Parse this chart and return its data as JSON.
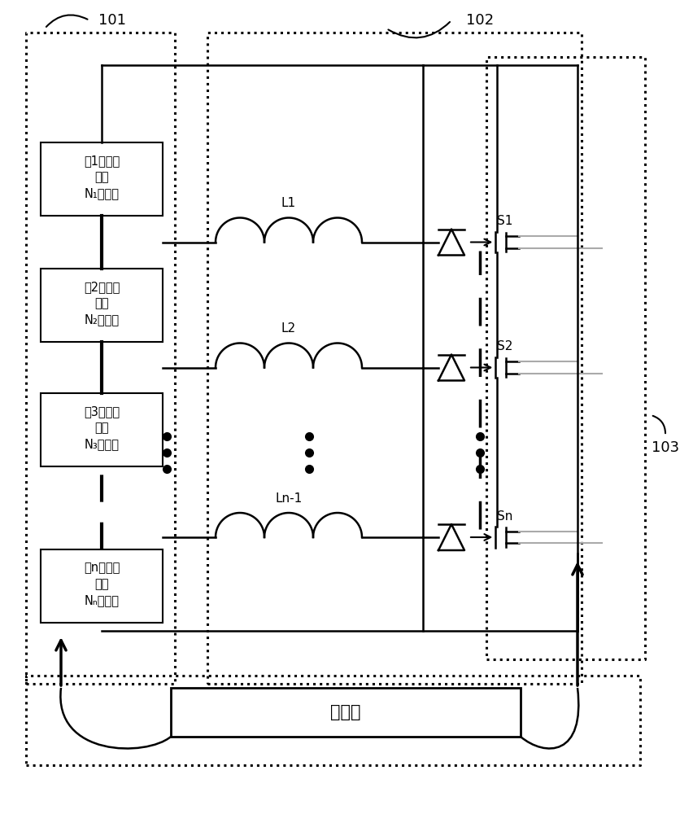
{
  "bg_color": "#ffffff",
  "fig_w": 8.53,
  "fig_h": 10.0,
  "dpi": 100,
  "box101_label": "101",
  "box102_label": "102",
  "box103_label": "103",
  "battery_texts": [
    [
      "第1个电池",
      "模块",
      "N₁个电池"
    ],
    [
      "第2个电池",
      "模块",
      "N₂个电池"
    ],
    [
      "第3个电池",
      "模块",
      "N₃个电池"
    ],
    [
      "第n个电池",
      "模块",
      "Nₙ个电池"
    ]
  ],
  "inductor_labels": [
    "L1",
    "L2",
    "Ln-1"
  ],
  "switch_labels": [
    "S1",
    "S2",
    "Sn"
  ],
  "controller_label": "控制器"
}
